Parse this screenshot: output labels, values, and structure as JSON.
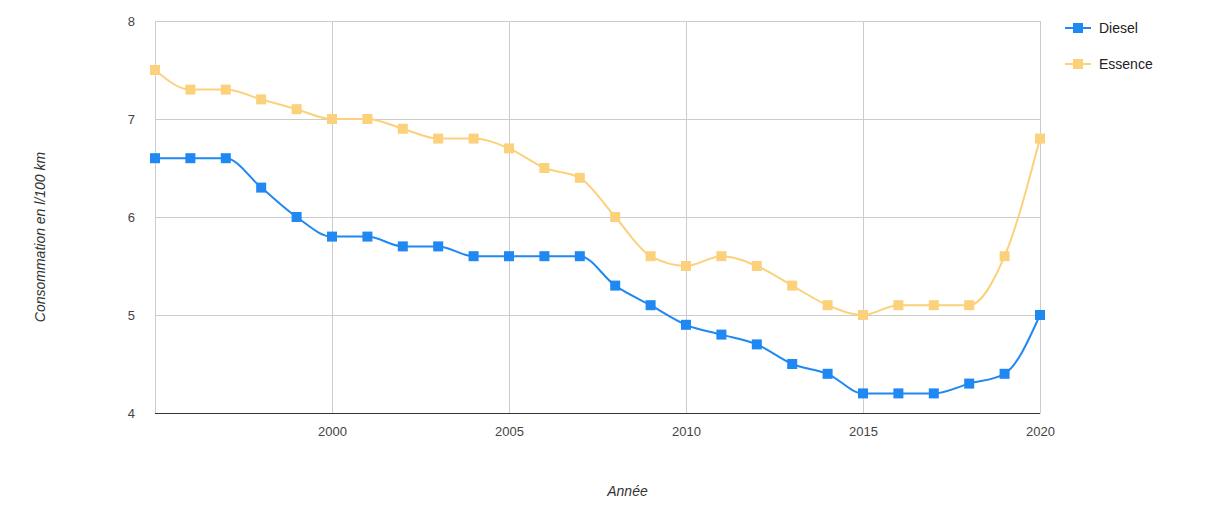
{
  "chart_data": {
    "type": "line",
    "x_label": "Année",
    "y_label": "Consommation en l/100 km",
    "x": [
      1995,
      1996,
      1997,
      1998,
      1999,
      2000,
      2001,
      2002,
      2003,
      2004,
      2005,
      2006,
      2007,
      2008,
      2009,
      2010,
      2011,
      2012,
      2013,
      2014,
      2015,
      2016,
      2017,
      2018,
      2019,
      2020
    ],
    "series": [
      {
        "name": "Diesel",
        "color": "#1f88f2",
        "values": [
          6.6,
          6.6,
          6.6,
          6.3,
          6.0,
          5.8,
          5.8,
          5.7,
          5.7,
          5.6,
          5.6,
          5.6,
          5.6,
          5.3,
          5.1,
          4.9,
          4.8,
          4.7,
          4.5,
          4.4,
          4.2,
          4.2,
          4.2,
          4.3,
          4.4,
          5.0
        ]
      },
      {
        "name": "Essence",
        "color": "#fcd17c",
        "values": [
          7.5,
          7.3,
          7.3,
          7.2,
          7.1,
          7.0,
          7.0,
          6.9,
          6.8,
          6.8,
          6.7,
          6.5,
          6.4,
          6.0,
          5.6,
          5.5,
          5.6,
          5.5,
          5.3,
          5.1,
          5.0,
          5.1,
          5.1,
          5.1,
          5.6,
          6.8
        ]
      }
    ],
    "xlim": [
      1995,
      2020
    ],
    "xticks": [
      2000,
      2005,
      2010,
      2015,
      2020
    ],
    "ylim": [
      4,
      8
    ],
    "yticks": [
      4,
      5,
      6,
      7,
      8
    ],
    "grid": true,
    "legend": "right",
    "marker": "square",
    "line_style": "smooth"
  }
}
